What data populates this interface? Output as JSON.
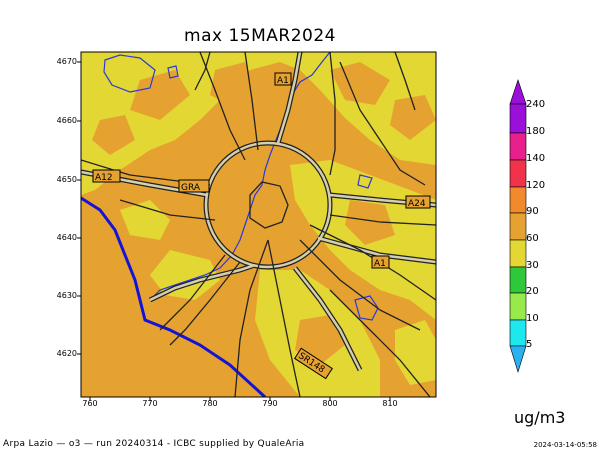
{
  "title": "max 15MAR2024",
  "map": {
    "y_ticks": [
      "4670",
      "4660",
      "4650",
      "4640",
      "4630",
      "4620"
    ],
    "x_ticks": [
      "760",
      "770",
      "780",
      "790",
      "800",
      "810"
    ],
    "road_labels": [
      "A1",
      "A12",
      "GRA",
      "A24",
      "A1",
      "SR148"
    ]
  },
  "colorbar": {
    "labels": [
      "240",
      "180",
      "140",
      "120",
      "90",
      "60",
      "30",
      "20",
      "10",
      "5"
    ],
    "colors": [
      "#9b10d8",
      "#e8208c",
      "#f0324a",
      "#f08a2c",
      "#e6a231",
      "#e3d733",
      "#2dc93a",
      "#98ea4b",
      "#1ee8ee",
      "#2ab2f0"
    ],
    "units": "ug/m3"
  },
  "footer": {
    "left": "Arpa Lazio — o3 — run 20240314 - ICBC supplied by QualeAria",
    "right": "2024-03-14-05:58"
  }
}
